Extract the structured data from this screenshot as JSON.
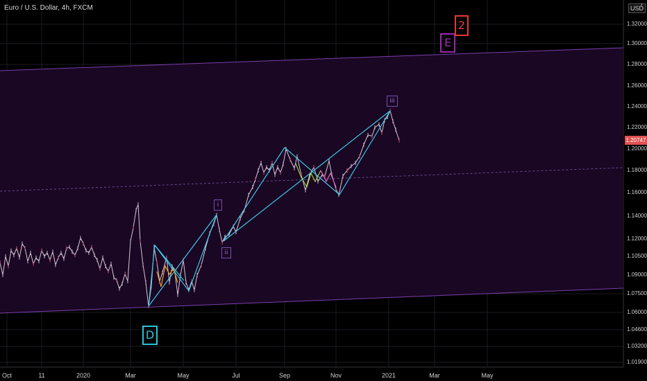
{
  "header": {
    "title": "Euro / U.S. Dollar, 4h, FXCM"
  },
  "currency_label": "USD",
  "currency_arrow": "↑",
  "last_price": "1.20747",
  "colors": {
    "background": "#000000",
    "channel_fill": "#1a0723",
    "channel_line": "#7b3fae",
    "trendline": "#3ccbea",
    "candles": "#d7c8d7",
    "price_tag": "#e05252",
    "label_D": "#26c6da",
    "label_E": "#9c27b0",
    "label_2": "#e53935",
    "wave_labels": "#7b4fb0"
  },
  "chart_data": {
    "type": "line",
    "title": "Euro / U.S. Dollar, 4h, FXCM",
    "symbol": "EURUSD",
    "timeframe": "4h",
    "y_ticks": [
      "1.32000",
      "1.30000",
      "1.28000",
      "1.26000",
      "1.24000",
      "1.22000",
      "1.20000",
      "1.18000",
      "1.16000",
      "1.14000",
      "1.12000",
      "1.10500",
      "1.09000",
      "1.07500",
      "1.06000",
      "1.04600",
      "1.03200",
      "1.01900"
    ],
    "x_ticks": [
      "Oct",
      "11",
      "2020",
      "Mar",
      "May",
      "Jul",
      "Sep",
      "Nov",
      "2021",
      "Mar",
      "May"
    ],
    "last_price": 1.20747,
    "series": [
      {
        "values": [
          [
            0,
            1.1
          ],
          [
            4,
            1.09
          ],
          [
            8,
            1.105
          ],
          [
            12,
            1.097
          ],
          [
            16,
            1.11
          ],
          [
            20,
            1.106
          ],
          [
            24,
            1.112
          ],
          [
            28,
            1.104
          ],
          [
            32,
            1.116
          ],
          [
            36,
            1.112
          ],
          [
            40,
            1.101
          ],
          [
            44,
            1.108
          ],
          [
            48,
            1.099
          ],
          [
            52,
            1.104
          ],
          [
            56,
            1.101
          ],
          [
            60,
            1.11
          ],
          [
            64,
            1.105
          ],
          [
            68,
            1.108
          ],
          [
            72,
            1.102
          ],
          [
            76,
            1.109
          ],
          [
            80,
            1.098
          ],
          [
            84,
            1.104
          ],
          [
            88,
            1.108
          ],
          [
            92,
            1.103
          ],
          [
            96,
            1.112
          ],
          [
            100,
            1.113
          ],
          [
            104,
            1.109
          ],
          [
            108,
            1.106
          ],
          [
            112,
            1.112
          ],
          [
            116,
            1.121
          ],
          [
            120,
            1.116
          ],
          [
            124,
            1.11
          ],
          [
            128,
            1.108
          ],
          [
            132,
            1.113
          ],
          [
            136,
            1.106
          ],
          [
            140,
            1.102
          ],
          [
            144,
            1.095
          ],
          [
            148,
            1.104
          ],
          [
            152,
            1.097
          ],
          [
            156,
            1.093
          ],
          [
            160,
            1.099
          ],
          [
            164,
            1.088
          ],
          [
            168,
            1.086
          ],
          [
            172,
            1.079
          ],
          [
            176,
            1.083
          ],
          [
            180,
            1.091
          ],
          [
            184,
            1.085
          ],
          [
            188,
            1.118
          ],
          [
            192,
            1.13
          ],
          [
            196,
            1.145
          ],
          [
            199,
            1.15
          ],
          [
            202,
            1.118
          ],
          [
            206,
            1.098
          ],
          [
            210,
            1.084
          ],
          [
            214,
            1.065
          ],
          [
            218,
            1.081
          ],
          [
            222,
            1.113
          ],
          [
            226,
            1.1
          ],
          [
            230,
            1.085
          ],
          [
            234,
            1.092
          ],
          [
            240,
            1.104
          ],
          [
            244,
            1.084
          ],
          [
            248,
            1.097
          ],
          [
            252,
            1.092
          ],
          [
            256,
            1.074
          ],
          [
            260,
            1.09
          ],
          [
            264,
            1.102
          ],
          [
            268,
            1.084
          ],
          [
            272,
            1.078
          ],
          [
            276,
            1.085
          ],
          [
            280,
            1.078
          ],
          [
            284,
            1.09
          ],
          [
            290,
            1.098
          ],
          [
            296,
            1.112
          ],
          [
            302,
            1.125
          ],
          [
            308,
            1.133
          ],
          [
            312,
            1.141
          ],
          [
            316,
            1.128
          ],
          [
            320,
            1.117
          ],
          [
            324,
            1.122
          ],
          [
            330,
            1.124
          ],
          [
            336,
            1.131
          ],
          [
            340,
            1.126
          ],
          [
            346,
            1.138
          ],
          [
            352,
            1.145
          ],
          [
            358,
            1.158
          ],
          [
            364,
            1.165
          ],
          [
            368,
            1.172
          ],
          [
            372,
            1.18
          ],
          [
            376,
            1.187
          ],
          [
            380,
            1.178
          ],
          [
            384,
            1.183
          ],
          [
            388,
            1.18
          ],
          [
            392,
            1.187
          ],
          [
            396,
            1.176
          ],
          [
            400,
            1.183
          ],
          [
            404,
            1.178
          ],
          [
            408,
            1.186
          ],
          [
            412,
            1.2
          ],
          [
            418,
            1.19
          ],
          [
            424,
            1.182
          ],
          [
            428,
            1.193
          ],
          [
            434,
            1.176
          ],
          [
            440,
            1.162
          ],
          [
            446,
            1.176
          ],
          [
            452,
            1.183
          ],
          [
            458,
            1.17
          ],
          [
            464,
            1.176
          ],
          [
            468,
            1.175
          ],
          [
            474,
            1.189
          ],
          [
            478,
            1.176
          ],
          [
            484,
            1.163
          ],
          [
            488,
            1.158
          ],
          [
            494,
            1.175
          ],
          [
            500,
            1.18
          ],
          [
            506,
            1.184
          ],
          [
            512,
            1.187
          ],
          [
            518,
            1.193
          ],
          [
            524,
            1.204
          ],
          [
            530,
            1.213
          ],
          [
            536,
            1.212
          ],
          [
            540,
            1.22
          ],
          [
            546,
            1.223
          ],
          [
            550,
            1.215
          ],
          [
            554,
            1.227
          ],
          [
            558,
            1.23
          ],
          [
            562,
            1.236
          ],
          [
            566,
            1.226
          ],
          [
            570,
            1.218
          ],
          [
            575,
            1.208
          ]
        ]
      }
    ],
    "annotations": [
      {
        "text": "D",
        "kind": "wave-label"
      },
      {
        "text": "E",
        "kind": "wave-label"
      },
      {
        "text": "2",
        "kind": "wave-label"
      },
      {
        "text": "i",
        "kind": "wave-label"
      },
      {
        "text": "ii",
        "kind": "wave-label"
      },
      {
        "text": "iii",
        "kind": "wave-label"
      }
    ]
  }
}
